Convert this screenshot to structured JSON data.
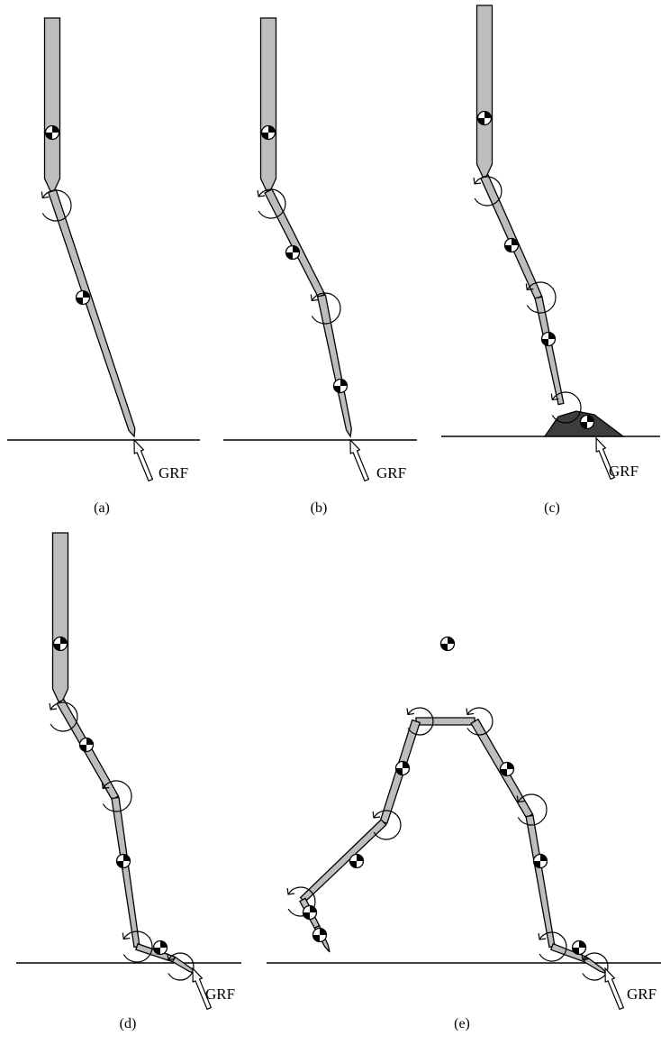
{
  "figure": {
    "panels": [
      {
        "id": "a",
        "label": "(a)",
        "force_label": "GRF"
      },
      {
        "id": "b",
        "label": "(b)",
        "force_label": "GRF"
      },
      {
        "id": "c",
        "label": "(c)",
        "force_label": "GRF"
      },
      {
        "id": "d",
        "label": "(d)",
        "force_label": "GRF"
      },
      {
        "id": "e",
        "label": "(e)",
        "force_label": "GRF"
      }
    ]
  },
  "colors": {
    "segment_fill": "#bdbdbd",
    "foot_fill": "#3d3d3d",
    "outline": "#000000",
    "background": "#ffffff"
  },
  "icons": {
    "center_of_mass": "center-of-mass-icon",
    "joint_moment": "joint-moment-icon",
    "ground_reaction_force": "ground-reaction-force-arrow"
  }
}
